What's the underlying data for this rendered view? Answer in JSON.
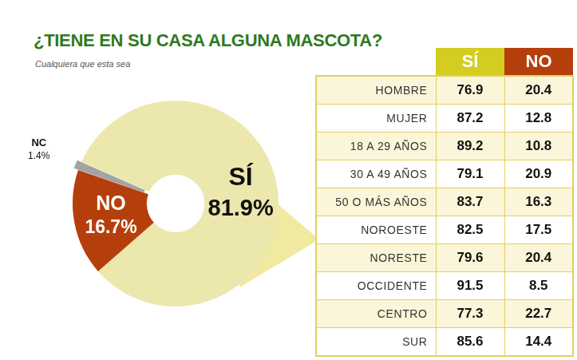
{
  "chart_data": {
    "type": "doughnut",
    "title": "¿TIENE EN SU CASA ALGUNA MASCOTA?",
    "subtitle": "Cualquiera que esta sea",
    "categories": [
      "SÍ",
      "NO",
      "NC"
    ],
    "values": [
      81.9,
      16.7,
      1.4
    ],
    "value_labels": [
      "81.9%",
      "16.7%",
      "1.4%"
    ],
    "colors": [
      "#ece7ad",
      "#b53f0c",
      "#a3a3a3"
    ],
    "data_labels": true
  },
  "table": {
    "columns": [
      "SÍ",
      "NO"
    ],
    "rows": [
      [
        "HOMBRE",
        76.9,
        20.4
      ],
      [
        "MUJER",
        87.2,
        12.8
      ],
      [
        "18 A 29 AÑOS",
        89.2,
        10.8
      ],
      [
        "30 A 49 AÑOS",
        79.1,
        20.9
      ],
      [
        "50 O MÁS AÑOS",
        83.7,
        16.3
      ],
      [
        "NOROESTE",
        82.5,
        17.5
      ],
      [
        "NORESTE",
        79.6,
        20.4
      ],
      [
        "OCCIDENTE",
        91.5,
        8.5
      ],
      [
        "CENTRO",
        77.3,
        22.7
      ],
      [
        "SUR",
        85.6,
        14.4
      ]
    ]
  }
}
